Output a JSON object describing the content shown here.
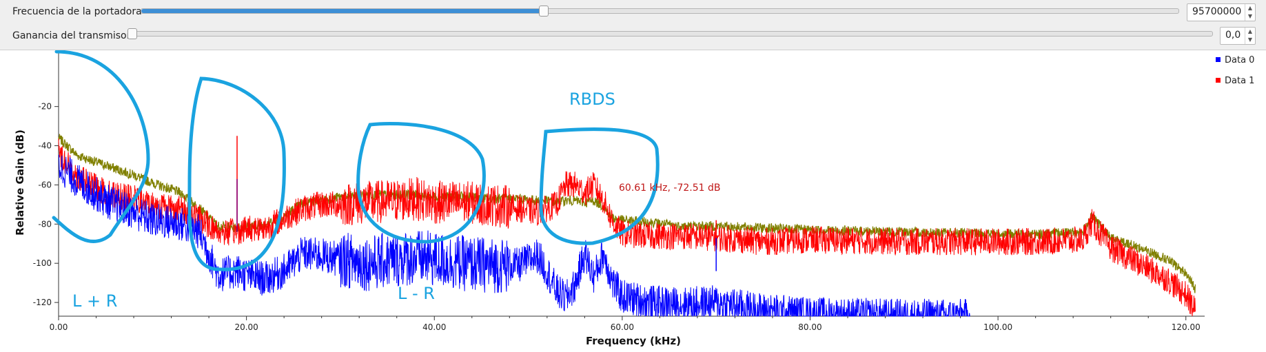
{
  "controls": {
    "carrier_freq": {
      "label": "Frecuencia de la portadora",
      "value": "95700000",
      "slider_fraction": 0.387
    },
    "tx_gain": {
      "label": "Ganancia del transmisor",
      "value": "0,0",
      "slider_fraction": 0.0
    }
  },
  "legend": [
    {
      "label": "Data 0",
      "color": "#0000ff"
    },
    {
      "label": "Data 1",
      "color": "#ff0000"
    }
  ],
  "annotations": {
    "lr_sum": "L + R",
    "lr_diff": "L - R",
    "rbds": "RBDS",
    "marker_readout": "60.61 kHz, -72.51 dB",
    "highlight_color": "#1aa3e0"
  },
  "chart_data": {
    "type": "line",
    "xlabel": "Frequency (kHz)",
    "ylabel": "Relative Gain (dB)",
    "xlim": [
      0,
      122
    ],
    "ylim": [
      -127,
      8
    ],
    "xticks": [
      0,
      20,
      40,
      60,
      80,
      100,
      120
    ],
    "xtick_labels": [
      "0.00",
      "20.00",
      "40.00",
      "60.00",
      "80.00",
      "100.00",
      "120.00"
    ],
    "yticks": [
      -20,
      -40,
      -60,
      -80,
      -100,
      -120
    ],
    "ytick_labels": [
      "-20",
      "-40",
      "-60",
      "-80",
      "-100",
      "-120"
    ],
    "grid": false,
    "legend_position": "right",
    "series": [
      {
        "name": "Data 0",
        "color": "#0000ff",
        "x": [
          0,
          2,
          5,
          8,
          10,
          13,
          15,
          17,
          19,
          20,
          22,
          24,
          26,
          28,
          30,
          33,
          36,
          38,
          40,
          43,
          46,
          49,
          51,
          52,
          53,
          54,
          55,
          56,
          57,
          58,
          59,
          60,
          63,
          66,
          70,
          75,
          80,
          90,
          97
        ],
        "y": [
          -50,
          -58,
          -68,
          -74,
          -78,
          -80,
          -84,
          -106,
          -104,
          -106,
          -108,
          -104,
          -95,
          -96,
          -98,
          -100,
          -98,
          -97,
          -98,
          -100,
          -101,
          -101,
          -96,
          -104,
          -114,
          -118,
          -111,
          -95,
          -107,
          -95,
          -110,
          -117,
          -120,
          -121,
          -120,
          -124,
          -126,
          -127,
          -127
        ]
      },
      {
        "name": "Data 1",
        "color": "#ff0000",
        "x": [
          0,
          2,
          5,
          8,
          10,
          13,
          15,
          17,
          19,
          20,
          22,
          24,
          26,
          28,
          30,
          33,
          36,
          38,
          40,
          43,
          46,
          49,
          51,
          52,
          53,
          54,
          55,
          56,
          57,
          58,
          59,
          60,
          63,
          66,
          70,
          75,
          80,
          90,
          100,
          105,
          109,
          110,
          112,
          115,
          118,
          120,
          121
        ],
        "y": [
          -43,
          -56,
          -64,
          -67,
          -70,
          -72,
          -77,
          -84,
          -84,
          -82,
          -82,
          -77,
          -72,
          -70,
          -70,
          -69,
          -68,
          -67,
          -69,
          -69,
          -70,
          -72,
          -74,
          -72,
          -70,
          -60,
          -60,
          -64,
          -60,
          -68,
          -79,
          -85,
          -86,
          -86,
          -87,
          -89,
          -88,
          -89,
          -89,
          -89,
          -88,
          -79,
          -92,
          -100,
          -108,
          -116,
          -124
        ]
      },
      {
        "name": "",
        "color": "#808000",
        "x": [
          0,
          2,
          5,
          8,
          10,
          13,
          15,
          17,
          19,
          20,
          22,
          24,
          26,
          28,
          30,
          33,
          36,
          38,
          40,
          43,
          46,
          49,
          51,
          52,
          53,
          54,
          55,
          56,
          57,
          58,
          59,
          60,
          63,
          66,
          70,
          75,
          80,
          90,
          100,
          105,
          109,
          110,
          112,
          115,
          118,
          120,
          121
        ],
        "y": [
          -36,
          -45,
          -50,
          -55,
          -59,
          -64,
          -72,
          -81,
          -82,
          -81,
          -80,
          -76,
          -69,
          -68,
          -66,
          -65,
          -65,
          -65,
          -66,
          -66,
          -67,
          -67,
          -68,
          -68,
          -69,
          -68,
          -68,
          -69,
          -68,
          -71,
          -77,
          -78,
          -79,
          -81,
          -81,
          -82,
          -83,
          -84,
          -85,
          -85,
          -84,
          -76,
          -87,
          -92,
          -98,
          -105,
          -113
        ]
      }
    ],
    "peaks": [
      {
        "x": 19.0,
        "y": -35,
        "color": "#ff0000"
      },
      {
        "x": 19.0,
        "y": -57,
        "color": "#800080"
      },
      {
        "x": 70.0,
        "y": -104,
        "color": "#0000ff"
      },
      {
        "x": 70.0,
        "y": -78,
        "color": "#ff0000"
      }
    ]
  }
}
